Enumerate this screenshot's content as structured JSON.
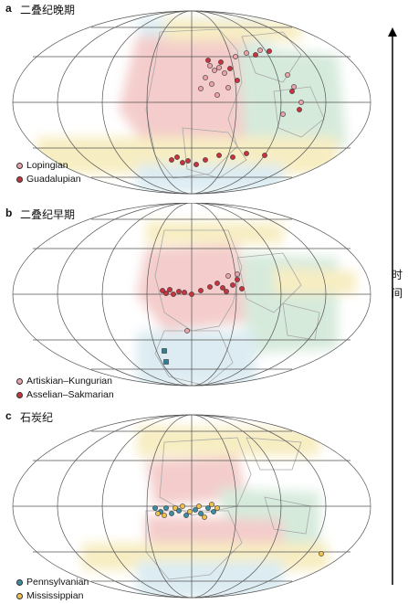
{
  "panels": [
    {
      "letter": "a",
      "title": "二叠纪晚期",
      "legend": [
        {
          "label": "Lopingian",
          "color": "#e9a3ab",
          "shape": "circle"
        },
        {
          "label": "Guadalupian",
          "color": "#c9323f",
          "shape": "circle"
        }
      ]
    },
    {
      "letter": "b",
      "title": "二叠纪早期",
      "legend": [
        {
          "label": "Artiskian–Kungurian",
          "color": "#e9a3ab",
          "shape": "circle"
        },
        {
          "label": "Asselian–Sakmarian",
          "color": "#c9323f",
          "shape": "circle"
        }
      ]
    },
    {
      "letter": "c",
      "title": "石炭纪",
      "legend": [
        {
          "label": "Pennsylvanian",
          "color": "#3a8fa6",
          "shape": "circle"
        },
        {
          "label": "Mississippian",
          "color": "#f0c24a",
          "shape": "circle"
        }
      ]
    }
  ],
  "time_axis": {
    "label_1": "时",
    "label_2": "间"
  },
  "colors": {
    "red_zone": "#f2c4c2",
    "yellow_zone": "#f6eab8",
    "green_zone": "#cfe7d6",
    "blue_zone": "#d6e9f0",
    "graticule": "#555555",
    "landmass": "#bfbfbf"
  }
}
